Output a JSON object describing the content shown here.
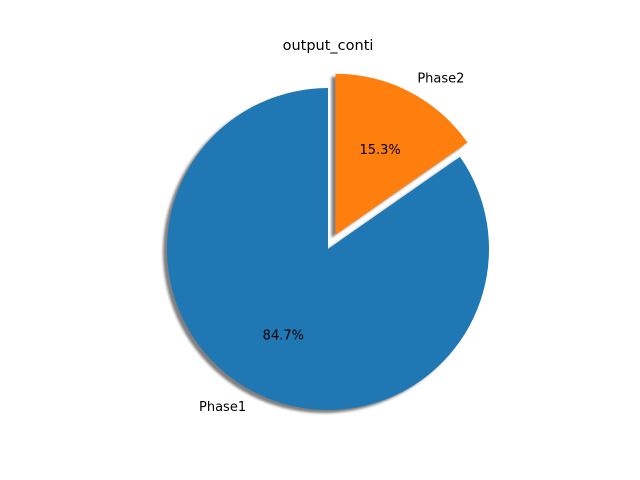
{
  "chart_data": {
    "type": "pie",
    "title": "output_conti",
    "labels": [
      "Phase1",
      "Phase2"
    ],
    "values": [
      84.7,
      15.3
    ],
    "autopct": [
      "84.7%",
      "15.3%"
    ],
    "colors": [
      "#1f77b4",
      "#ff7f0e"
    ],
    "explode": [
      0,
      0.1
    ],
    "shadow": true,
    "start_angle_deg": 90,
    "counterclock": true
  }
}
